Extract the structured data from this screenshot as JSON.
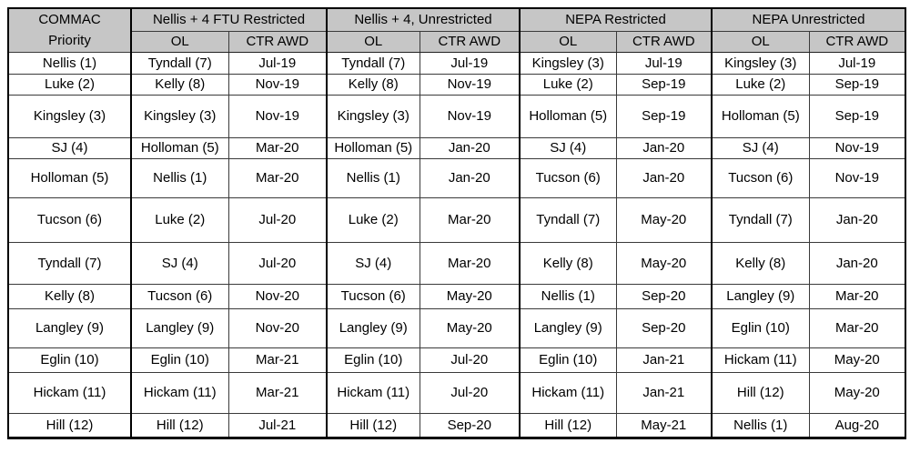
{
  "table": {
    "corner_header": {
      "line1": "COMMAC",
      "line2": "Priority"
    },
    "groups": [
      {
        "label": "Nellis + 4 FTU Restricted",
        "sub": [
          "OL",
          "CTR AWD"
        ]
      },
      {
        "label": "Nellis + 4, Unrestricted",
        "sub": [
          "OL",
          "CTR AWD"
        ]
      },
      {
        "label": "NEPA Restricted",
        "sub": [
          "OL",
          "CTR AWD"
        ]
      },
      {
        "label": "NEPA Unrestricted",
        "sub": [
          "OL",
          "CTR AWD"
        ]
      }
    ],
    "rows": [
      {
        "priority": "Nellis (1)",
        "cells": [
          "Tyndall (7)",
          "Jul-19",
          "Tyndall (7)",
          "Jul-19",
          "Kingsley (3)",
          "Jul-19",
          "Kingsley (3)",
          "Jul-19"
        ]
      },
      {
        "priority": "Luke (2)",
        "cells": [
          "Kelly (8)",
          "Nov-19",
          "Kelly (8)",
          "Nov-19",
          "Luke (2)",
          "Sep-19",
          "Luke (2)",
          "Sep-19"
        ]
      },
      {
        "priority": "Kingsley (3)",
        "cells": [
          "Kingsley (3)",
          "Nov-19",
          "Kingsley (3)",
          "Nov-19",
          "Holloman (5)",
          "Sep-19",
          "Holloman (5)",
          "Sep-19"
        ]
      },
      {
        "priority": "SJ (4)",
        "cells": [
          "Holloman (5)",
          "Mar-20",
          "Holloman (5)",
          "Jan-20",
          "SJ (4)",
          "Jan-20",
          "SJ (4)",
          "Nov-19"
        ]
      },
      {
        "priority": "Holloman (5)",
        "cells": [
          "Nellis (1)",
          "Mar-20",
          "Nellis (1)",
          "Jan-20",
          "Tucson (6)",
          "Jan-20",
          "Tucson (6)",
          "Nov-19"
        ]
      },
      {
        "priority": "Tucson (6)",
        "cells": [
          "Luke (2)",
          "Jul-20",
          "Luke (2)",
          "Mar-20",
          "Tyndall (7)",
          "May-20",
          "Tyndall (7)",
          "Jan-20"
        ]
      },
      {
        "priority": "Tyndall (7)",
        "cells": [
          "SJ (4)",
          "Jul-20",
          "SJ (4)",
          "Mar-20",
          "Kelly (8)",
          "May-20",
          "Kelly (8)",
          "Jan-20"
        ]
      },
      {
        "priority": "Kelly (8)",
        "cells": [
          "Tucson (6)",
          "Nov-20",
          "Tucson (6)",
          "May-20",
          "Nellis (1)",
          "Sep-20",
          "Langley (9)",
          "Mar-20"
        ]
      },
      {
        "priority": "Langley (9)",
        "cells": [
          "Langley (9)",
          "Nov-20",
          "Langley (9)",
          "May-20",
          "Langley (9)",
          "Sep-20",
          "Eglin (10)",
          "Mar-20"
        ]
      },
      {
        "priority": "Eglin (10)",
        "cells": [
          "Eglin (10)",
          "Mar-21",
          "Eglin (10)",
          "Jul-20",
          "Eglin (10)",
          "Jan-21",
          "Hickam (11)",
          "May-20"
        ]
      },
      {
        "priority": "Hickam (11)",
        "cells": [
          "Hickam (11)",
          "Mar-21",
          "Hickam (11)",
          "Jul-20",
          "Hickam (11)",
          "Jan-21",
          "Hill (12)",
          "May-20"
        ]
      },
      {
        "priority": "Hill (12)",
        "cells": [
          "Hill (12)",
          "Jul-21",
          "Hill (12)",
          "Sep-20",
          "Hill (12)",
          "May-21",
          "Nellis (1)",
          "Aug-20"
        ]
      }
    ]
  },
  "colors": {
    "header_bg": "#c6c6c6",
    "border_thick": "#000000",
    "border_thin": "#3a3a3a",
    "text": "#000000"
  }
}
